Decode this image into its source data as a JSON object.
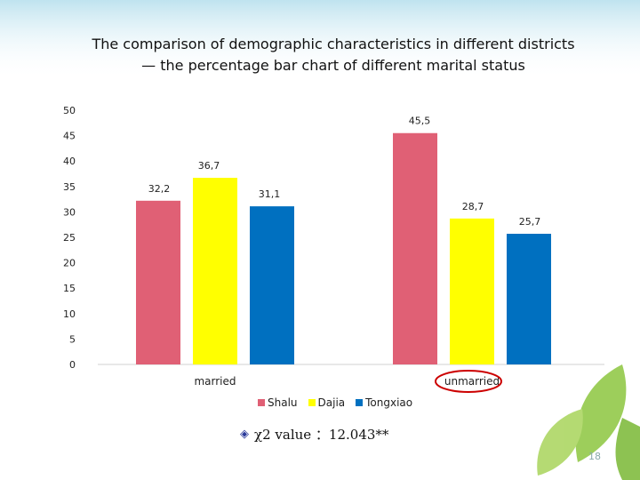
{
  "slide": {
    "title": "The comparison of demographic characteristics in different districts— the percentage bar chart of different marital status",
    "stat_note": "χ2 value ：12.043**",
    "page_number": "18"
  },
  "chart_data": {
    "type": "bar",
    "title": "The comparison of demographic characteristics in different districts— the percentage bar chart of different marital status",
    "categories": [
      "married",
      "unmarried"
    ],
    "series": [
      {
        "name": "Shalu",
        "values": [
          32.2,
          45.5
        ],
        "labels": [
          "32,2",
          "45,5"
        ],
        "color": "#e06075"
      },
      {
        "name": "Dajia",
        "values": [
          36.7,
          28.7
        ],
        "labels": [
          "36,7",
          "28,7"
        ],
        "color": "#ffff00"
      },
      {
        "name": "Tongxiao",
        "values": [
          31.1,
          25.7
        ],
        "labels": [
          "31,1",
          "25,7"
        ],
        "color": "#0070c0"
      }
    ],
    "ylim": [
      0,
      50
    ],
    "yticks": [
      0,
      5,
      10,
      15,
      20,
      25,
      30,
      35,
      40,
      45,
      50
    ],
    "grid": false,
    "legend_position": "bottom",
    "highlighted_category": "unmarried",
    "highlight_color": "#cc0000"
  }
}
